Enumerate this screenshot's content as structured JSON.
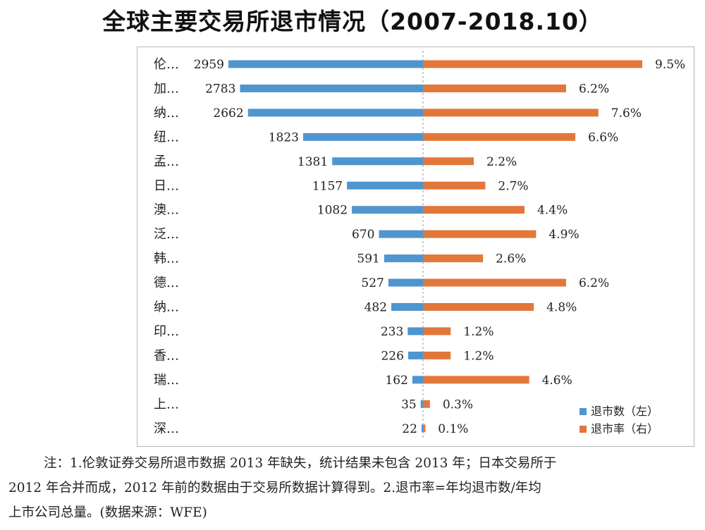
{
  "chart_data": {
    "type": "bar",
    "title": "全球主要交易所退市情况（2007-2018.10）",
    "categories": [
      "伦…",
      "加…",
      "纳…",
      "纽…",
      "孟…",
      "日…",
      "澳…",
      "泛…",
      "韩…",
      "德…",
      "纳…",
      "印…",
      "香…",
      "瑞…",
      "上…",
      "深…"
    ],
    "series": [
      {
        "name": "退市数（左）",
        "values": [
          2959,
          2783,
          2662,
          1823,
          1381,
          1157,
          1082,
          670,
          591,
          527,
          482,
          233,
          226,
          162,
          35,
          22
        ],
        "labels": [
          "2959",
          "2783",
          "2662",
          "1823",
          "1381",
          "1157",
          "1082",
          "670",
          "591",
          "527",
          "482",
          "233",
          "226",
          "162",
          "35",
          "22"
        ]
      },
      {
        "name": "退市率（右）",
        "values": [
          9.5,
          6.2,
          7.6,
          6.6,
          2.2,
          2.7,
          4.4,
          4.9,
          2.6,
          6.2,
          4.8,
          1.2,
          1.2,
          4.6,
          0.3,
          0.1
        ],
        "labels": [
          "9.5%",
          "6.2%",
          "7.6%",
          "6.6%",
          "2.2%",
          "2.7%",
          "4.4%",
          "4.9%",
          "2.6%",
          "6.2%",
          "4.8%",
          "1.2%",
          "1.2%",
          "4.6%",
          "0.3%",
          "0.1%"
        ]
      }
    ],
    "colors": {
      "left": "#4f95cf",
      "right": "#e2773a"
    },
    "legend_position": "bottom-right",
    "grid": false
  },
  "note": {
    "line1": "注：1.伦敦证券交易所退市数据 2013 年缺失，统计结果未包含 2013 年；日本交易所于",
    "line2": "2012 年合并而成，2012 年前的数据由于交易所数据计算得到。2.退市率=年均退市数/年均",
    "line3": "上市公司总量。(数据来源：WFE)"
  }
}
